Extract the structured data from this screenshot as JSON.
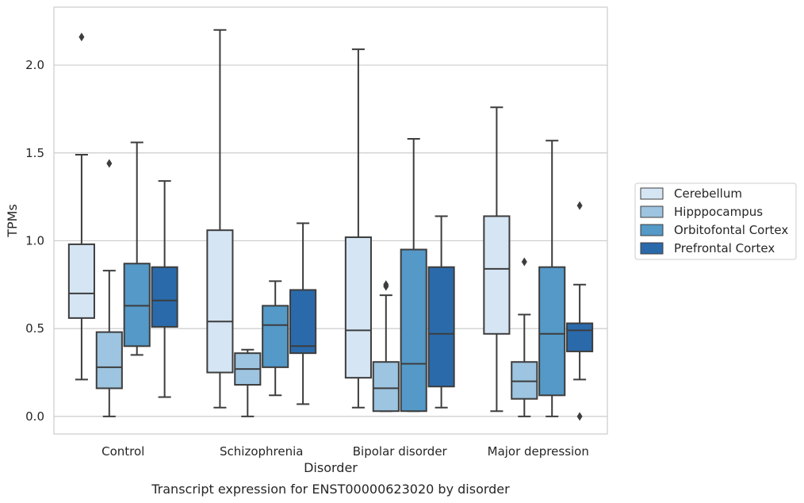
{
  "caption": "Transcript expression for ENST00000623020 by disorder",
  "chart_data": {
    "type": "box",
    "xlabel": "Disorder",
    "ylabel": "TPMs",
    "ylim": [
      -0.1,
      2.33
    ],
    "yticks": [
      "0.0",
      "0.5",
      "1.0",
      "1.5",
      "2.0"
    ],
    "ytick_values": [
      0.0,
      0.5,
      1.0,
      1.5,
      2.0
    ],
    "grid": "horizontal",
    "legend_position": "right",
    "categories": [
      "Control",
      "Schizophrenia",
      "Bipolar disorder",
      "Major depression"
    ],
    "series": [
      {
        "name": "Cerebellum",
        "color": "#d5e5f4",
        "boxes": [
          {
            "whisker_low": 0.21,
            "q1": 0.56,
            "median": 0.7,
            "q3": 0.98,
            "whisker_high": 1.49,
            "outliers": [
              2.16
            ]
          },
          {
            "whisker_low": 0.05,
            "q1": 0.25,
            "median": 0.54,
            "q3": 1.06,
            "whisker_high": 2.2,
            "outliers": []
          },
          {
            "whisker_low": 0.05,
            "q1": 0.22,
            "median": 0.49,
            "q3": 1.02,
            "whisker_high": 2.09,
            "outliers": []
          },
          {
            "whisker_low": 0.03,
            "q1": 0.47,
            "median": 0.84,
            "q3": 1.14,
            "whisker_high": 1.76,
            "outliers": []
          }
        ]
      },
      {
        "name": "Hipppocampus",
        "color": "#9dc4e0",
        "boxes": [
          {
            "whisker_low": 0.0,
            "q1": 0.16,
            "median": 0.28,
            "q3": 0.48,
            "whisker_high": 0.83,
            "outliers": [
              1.44
            ]
          },
          {
            "whisker_low": 0.0,
            "q1": 0.18,
            "median": 0.27,
            "q3": 0.36,
            "whisker_high": 0.38,
            "outliers": []
          },
          {
            "whisker_low": 0.03,
            "q1": 0.03,
            "median": 0.16,
            "q3": 0.31,
            "whisker_high": 0.69,
            "outliers": [
              0.74,
              0.75
            ]
          },
          {
            "whisker_low": 0.0,
            "q1": 0.1,
            "median": 0.2,
            "q3": 0.31,
            "whisker_high": 0.58,
            "outliers": [
              0.88
            ]
          }
        ]
      },
      {
        "name": "Orbitofontal Cortex",
        "color": "#5499c7",
        "boxes": [
          {
            "whisker_low": 0.35,
            "q1": 0.4,
            "median": 0.63,
            "q3": 0.87,
            "whisker_high": 1.56,
            "outliers": []
          },
          {
            "whisker_low": 0.12,
            "q1": 0.28,
            "median": 0.52,
            "q3": 0.63,
            "whisker_high": 0.77,
            "outliers": []
          },
          {
            "whisker_low": 0.03,
            "q1": 0.03,
            "median": 0.3,
            "q3": 0.95,
            "whisker_high": 1.58,
            "outliers": []
          },
          {
            "whisker_low": 0.0,
            "q1": 0.12,
            "median": 0.47,
            "q3": 0.85,
            "whisker_high": 1.57,
            "outliers": []
          }
        ]
      },
      {
        "name": "Prefrontal Cortex",
        "color": "#2a6aab",
        "boxes": [
          {
            "whisker_low": 0.11,
            "q1": 0.51,
            "median": 0.66,
            "q3": 0.85,
            "whisker_high": 1.34,
            "outliers": []
          },
          {
            "whisker_low": 0.07,
            "q1": 0.36,
            "median": 0.4,
            "q3": 0.72,
            "whisker_high": 1.1,
            "outliers": []
          },
          {
            "whisker_low": 0.05,
            "q1": 0.17,
            "median": 0.47,
            "q3": 0.85,
            "whisker_high": 1.14,
            "outliers": []
          },
          {
            "whisker_low": 0.21,
            "q1": 0.37,
            "median": 0.49,
            "q3": 0.53,
            "whisker_high": 0.75,
            "outliers": [
              1.2,
              0.0
            ]
          }
        ]
      }
    ]
  }
}
